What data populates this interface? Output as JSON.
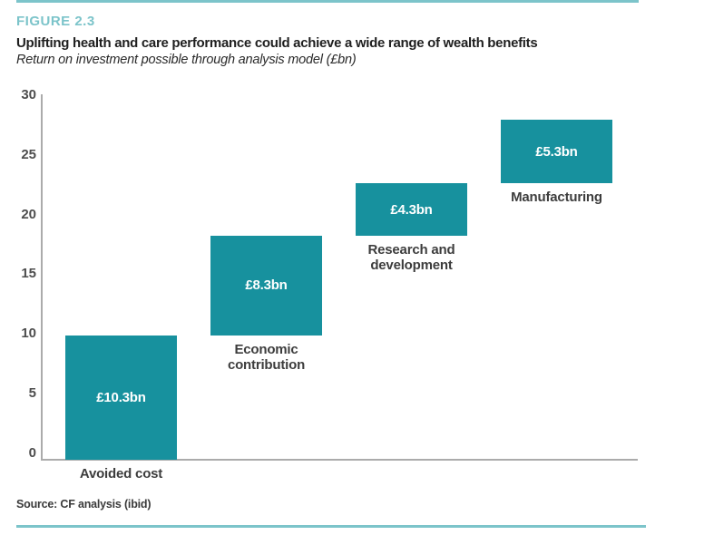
{
  "figure": {
    "label": "FIGURE 2.3",
    "title": "Uplifting health and care performance could achieve a wide range of wealth benefits",
    "subtitle": "Return on investment possible through analysis model (£bn)",
    "source": "Source: CF analysis (ibid)"
  },
  "colors": {
    "bar": "#17919e",
    "accent_light": "#7cc4ca",
    "axis": "#ababab",
    "title_text": "#1f1f1f",
    "category_label": "#3d3d3d",
    "bar_value_text": "#ffffff"
  },
  "chart_data": {
    "type": "bar",
    "subtype": "waterfall",
    "title": "Uplifting health and care performance could achieve a wide range of wealth benefits",
    "subtitle": "Return on investment possible through analysis model (£bn)",
    "categories": [
      "Avoided cost",
      "Economic contribution",
      "Research and development",
      "Manufacturing"
    ],
    "values": [
      10.3,
      8.3,
      4.3,
      5.3
    ],
    "bar_labels": [
      "£10.3bn",
      "£8.3bn",
      "£4.3bn",
      "£5.3bn"
    ],
    "cumulative_start": [
      0,
      10.3,
      18.6,
      22.9
    ],
    "xlabel": "",
    "ylabel": "",
    "ylim": [
      0,
      30
    ],
    "yticks": [
      0,
      5,
      10,
      15,
      20,
      25,
      30
    ],
    "grid": false,
    "legend": false
  }
}
